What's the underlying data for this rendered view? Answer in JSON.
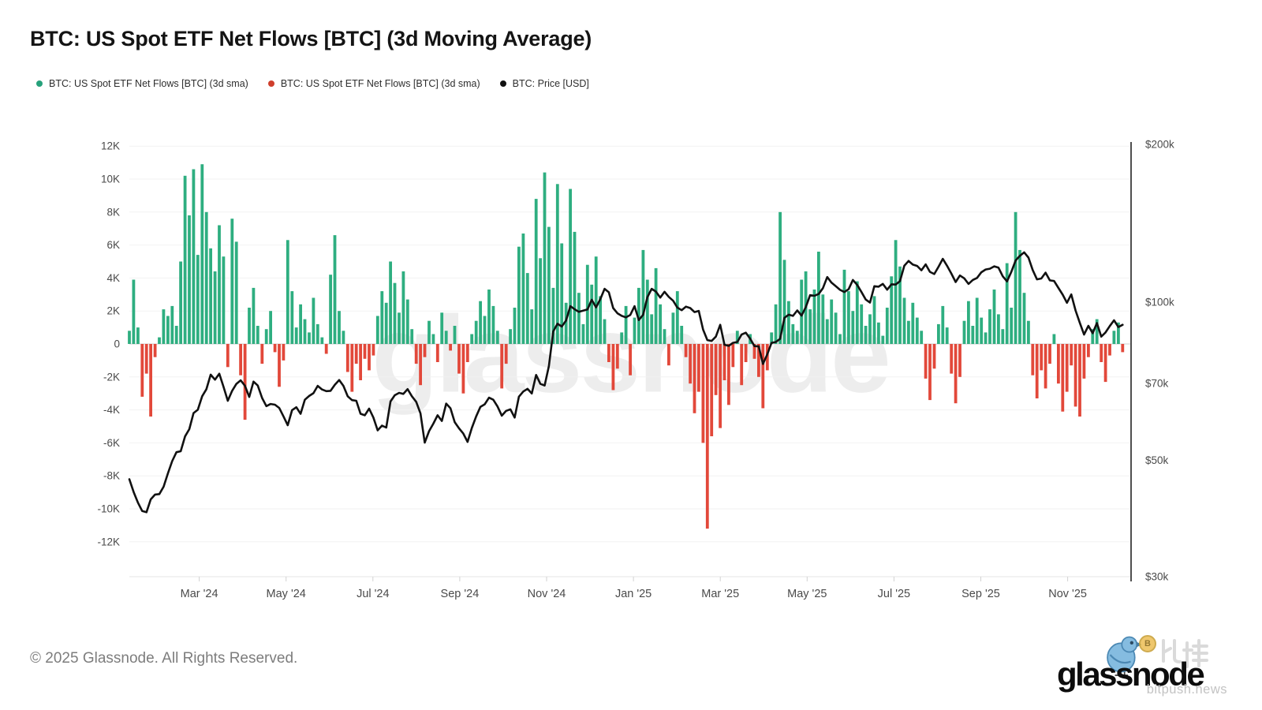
{
  "title": "BTC: US Spot ETF Net Flows [BTC] (3d Moving Average)",
  "legend": [
    {
      "label": "BTC: US Spot ETF Net Flows [BTC] (3d sma)",
      "color": "#26a17b"
    },
    {
      "label": "BTC: US Spot ETF Net Flows [BTC] (3d sma)",
      "color": "#cf3f2c"
    },
    {
      "label": "BTC: Price [USD]",
      "color": "#111111"
    }
  ],
  "watermark": {
    "text": "glassnode"
  },
  "footer": {
    "copyright": "© 2025 Glassnode. All Rights Reserved."
  },
  "logo": {
    "wordmark": "glassnode",
    "coin_letter": "B",
    "overlay_cn": "比推",
    "overlay_site": "bitpush.news"
  },
  "axes": {
    "left": {
      "labels": [
        "12K",
        "10K",
        "8K",
        "6K",
        "4K",
        "2K",
        "0",
        "-2K",
        "-4K",
        "-6K",
        "-8K",
        "-10K",
        "-12K"
      ],
      "values": [
        12000,
        10000,
        8000,
        6000,
        4000,
        2000,
        0,
        -2000,
        -4000,
        -6000,
        -8000,
        -10000,
        -12000
      ]
    },
    "right": {
      "labels": [
        "$200k",
        "$100k",
        "$70k",
        "$50k",
        "$30k"
      ],
      "values": [
        200000,
        100000,
        70000,
        50000,
        30000
      ],
      "scale": "log"
    },
    "x": {
      "labels": [
        "Mar '24",
        "May '24",
        "Jul '24",
        "Sep '24",
        "Nov '24",
        "Jan '25",
        "Mar '25",
        "May '25",
        "Jul '25",
        "Sep '25",
        "Nov '25"
      ]
    }
  },
  "chart_data": {
    "type": "composite",
    "x_start": "2024-01-12",
    "x_step_days": 3,
    "ylim_left": [
      -13000,
      13000
    ],
    "y_right_log_range": [
      30000,
      200000
    ],
    "grid": true,
    "legend_position": "top-left",
    "series": [
      {
        "name": "BTC: US Spot ETF Net Flows [BTC] (3d sma)",
        "type": "bar",
        "unit": "BTC",
        "axis": "left",
        "color_positive": "#2eae80",
        "color_negative": "#e2483a",
        "values": [
          800,
          3900,
          1000,
          -3200,
          -1800,
          -4400,
          -800,
          400,
          2100,
          1700,
          2300,
          1100,
          5000,
          10200,
          7800,
          10600,
          5400,
          10900,
          8000,
          5800,
          4400,
          7200,
          5300,
          -1400,
          7600,
          6200,
          -1900,
          -4600,
          2200,
          3400,
          1100,
          -1200,
          900,
          2000,
          -500,
          -2600,
          -1000,
          6300,
          3200,
          1000,
          2400,
          1500,
          700,
          2800,
          1200,
          400,
          -600,
          4200,
          6600,
          2000,
          800,
          -1700,
          -2900,
          -1200,
          -2200,
          -900,
          -1600,
          -700,
          1700,
          3200,
          2500,
          5000,
          3700,
          1900,
          4400,
          2700,
          900,
          -1200,
          -2500,
          -800,
          1400,
          600,
          -1100,
          1900,
          800,
          -400,
          1100,
          -1800,
          -3000,
          -1100,
          600,
          1400,
          2600,
          1700,
          3300,
          2300,
          800,
          -2700,
          -1200,
          900,
          2200,
          5900,
          6700,
          4300,
          2100,
          8800,
          5200,
          10400,
          7100,
          3400,
          9700,
          6100,
          2500,
          9400,
          6800,
          3100,
          1200,
          4800,
          3600,
          5300,
          2900,
          1500,
          -1100,
          -2800,
          -1500,
          700,
          2300,
          -1900,
          1600,
          3400,
          5700,
          3900,
          1800,
          4600,
          2400,
          900,
          -1300,
          1900,
          3200,
          1100,
          -800,
          -2400,
          -4200,
          -2900,
          -6000,
          -11200,
          -5600,
          -3100,
          -5100,
          -2200,
          -3700,
          -1400,
          800,
          -2500,
          -1100,
          600,
          -900,
          -2000,
          -3900,
          -1600,
          700,
          2400,
          8000,
          5100,
          2600,
          1200,
          800,
          3900,
          4400,
          2100,
          3300,
          5600,
          3000,
          1500,
          2700,
          1900,
          600,
          4500,
          3200,
          2000,
          3800,
          2400,
          1100,
          1800,
          2900,
          1300,
          500,
          2200,
          4100,
          6300,
          4700,
          2800,
          1400,
          2500,
          1600,
          800,
          -2100,
          -3400,
          -1500,
          1200,
          2300,
          1000,
          -1800,
          -3600,
          -2000,
          1400,
          2600,
          1100,
          2800,
          1600,
          700,
          2100,
          3300,
          1800,
          900,
          4900,
          2200,
          8000,
          5700,
          3100,
          1400,
          -1900,
          -3300,
          -1600,
          -2700,
          -1200,
          600,
          -2400,
          -4100,
          -2900,
          -1300,
          -3800,
          -4400,
          -2100,
          -800,
          900,
          1500,
          -1100,
          -2300,
          -700,
          800,
          1300,
          -500
        ]
      },
      {
        "name": "BTC: Price [USD]",
        "type": "line",
        "unit": "USD",
        "axis": "right",
        "color": "#111111",
        "values": [
          46000,
          43500,
          41500,
          40000,
          39800,
          42100,
          43000,
          43100,
          44500,
          47200,
          49800,
          51800,
          52000,
          55500,
          57300,
          61500,
          62400,
          66200,
          68300,
          72800,
          71200,
          73100,
          69000,
          64900,
          67800,
          69900,
          71000,
          69300,
          66000,
          70600,
          69400,
          65700,
          63400,
          64000,
          63800,
          62900,
          60600,
          58300,
          62300,
          63100,
          61300,
          65200,
          66300,
          67100,
          69300,
          68200,
          67700,
          67800,
          69600,
          71100,
          69300,
          66200,
          65100,
          64900,
          61300,
          60900,
          62700,
          60300,
          57000,
          58200,
          57700,
          64700,
          66500,
          67200,
          66900,
          68300,
          66200,
          64600,
          61400,
          54000,
          56800,
          58700,
          60900,
          59400,
          64100,
          62800,
          59100,
          57500,
          56200,
          54200,
          57600,
          60600,
          63200,
          63900,
          65800,
          65200,
          63300,
          60800,
          62100,
          62500,
          60300,
          66100,
          67600,
          68400,
          67000,
          72700,
          69900,
          69400,
          75600,
          88000,
          91000,
          89900,
          92300,
          98300,
          97000,
          95900,
          96400,
          96900,
          101100,
          97800,
          101400,
          106100,
          104500,
          97500,
          95300,
          94200,
          93600,
          94600,
          98300,
          92500,
          94700,
          102300,
          106100,
          104800,
          102100,
          104700,
          102400,
          100700,
          97700,
          96600,
          98100,
          97500,
          95800,
          96300,
          88700,
          84700,
          84400,
          86000,
          90600,
          83000,
          82600,
          83700,
          84000,
          86800,
          87500,
          85200,
          82500,
          82400,
          76300,
          79600,
          83700,
          84000,
          85200,
          93400,
          94700,
          94200,
          96500,
          94300,
          97900,
          103200,
          102900,
          103700,
          106400,
          111700,
          109000,
          107300,
          105600,
          104600,
          105900,
          110300,
          107900,
          104600,
          101200,
          99900,
          107300,
          107100,
          108400,
          105700,
          108200,
          108100,
          109700,
          117400,
          119900,
          118000,
          117300,
          115100,
          118100,
          114300,
          113200,
          116900,
          121000,
          117400,
          113400,
          109300,
          112500,
          111100,
          108400,
          110300,
          111300,
          114100,
          115500,
          115900,
          117100,
          116400,
          112100,
          109600,
          114300,
          120100,
          122600,
          124500,
          121700,
          115200,
          110600,
          111000,
          113900,
          110100,
          109800,
          106500,
          103400,
          99800,
          103500,
          96500,
          91400,
          86800,
          90200,
          87300,
          91300,
          86000,
          87600,
          90100,
          92400,
          89700,
          90600
        ]
      }
    ]
  }
}
